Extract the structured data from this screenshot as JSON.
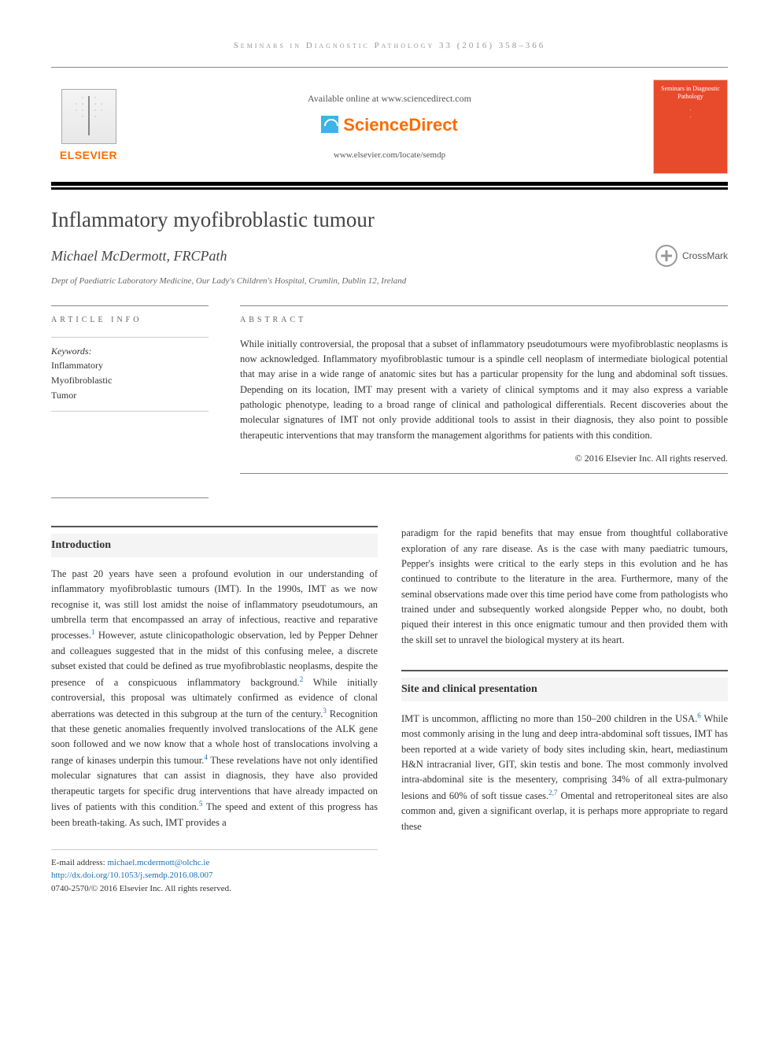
{
  "runningHead": "Seminars in Diagnostic Pathology 33 (2016) 358–366",
  "masthead": {
    "elsevier": "ELSEVIER",
    "availableOnline": "Available online at www.sciencedirect.com",
    "scienceDirect": "ScienceDirect",
    "locate": "www.elsevier.com/locate/semdp",
    "journalCoverTitle": "Seminars in Diagnostic Pathology",
    "journalCoverSub1": "·",
    "journalCoverSub2": "·"
  },
  "article": {
    "title": "Inflammatory myofibroblastic tumour",
    "author": "Michael McDermott, FRCPath",
    "crossmark": "CrossMark",
    "affiliation": "Dept of Paediatric Laboratory Medicine, Our Lady's Children's Hospital, Crumlin, Dublin 12, Ireland"
  },
  "info": {
    "heading": "article info",
    "keywordsLabel": "Keywords:",
    "keywords": [
      "Inflammatory",
      "Myofibroblastic",
      "Tumor"
    ]
  },
  "abstract": {
    "heading": "abstract",
    "text": "While initially controversial, the proposal that a subset of inflammatory pseudotumours were myofibroblastic neoplasms is now acknowledged. Inflammatory myofibroblastic tumour is a spindle cell neoplasm of intermediate biological potential that may arise in a wide range of anatomic sites but has a particular propensity for the lung and abdominal soft tissues. Depending on its location, IMT may present with a variety of clinical symptoms and it may also express a variable pathologic phenotype, leading to a broad range of clinical and pathological differentials. Recent discoveries about the molecular signatures of IMT not only provide additional tools to assist in their diagnosis, they also point to possible therapeutic interventions that may transform the management algorithms for patients with this condition.",
    "copyright": "© 2016 Elsevier Inc. All rights reserved."
  },
  "sections": {
    "intro": {
      "heading": "Introduction",
      "p1a": "The past 20 years have seen a profound evolution in our understanding of inflammatory myofibroblastic tumours (IMT). In the 1990s, IMT as we now recognise it, was still lost amidst the noise of inflammatory pseudotumours, an umbrella term that encompassed an array of infectious, reactive and reparative processes.",
      "r1": "1",
      "p1b": " However, astute clinicopathologic observation, led by Pepper Dehner and colleagues suggested that in the midst of this confusing melee, a discrete subset existed that could be defined as true myofibroblastic neoplasms, despite the presence of a conspicuous inflammatory background.",
      "r2": "2",
      "p1c": " While initially controversial, this proposal was ultimately confirmed as evidence of clonal aberrations was detected in this subgroup at the turn of the century.",
      "r3": "3",
      "p1d": " Recognition that these genetic anomalies frequently involved translocations of the ALK gene soon followed and we now know that a whole host of translocations involving a range of kinases underpin this tumour.",
      "r4": "4",
      "p1e": " These revelations have not only identified molecular signatures that can assist in diagnosis, they have also provided therapeutic targets for specific drug interventions that have already impacted on lives of patients with this condition.",
      "r5": "5",
      "p1f": " The speed and extent of this progress has been breath-taking. As such, IMT provides a",
      "p2": "paradigm for the rapid benefits that may ensue from thoughtful collaborative exploration of any rare disease. As is the case with many paediatric tumours, Pepper's insights were critical to the early steps in this evolution and he has continued to contribute to the literature in the area. Furthermore, many of the seminal observations made over this time period have come from pathologists who trained under and subsequently worked alongside Pepper who, no doubt, both piqued their interest in this once enigmatic tumour and then provided them with the skill set to unravel the biological mystery at its heart."
    },
    "site": {
      "heading": "Site and clinical presentation",
      "p1a": "IMT is uncommon, afflicting no more than 150–200 children in the USA.",
      "r6": "6",
      "p1b": " While most commonly arising in the lung and deep intra-abdominal soft tissues, IMT has been reported at a wide variety of body sites including skin, heart, mediastinum H&N intracranial liver, GIT, skin testis and bone. The most commonly involved intra-abdominal site is the mesentery, comprising 34% of all extra-pulmonary lesions and 60% of soft tissue cases.",
      "r27": "2,7",
      "p1c": " Omental and retroperitoneal sites are also common and, given a significant overlap, it is perhaps more appropriate to regard these"
    }
  },
  "footer": {
    "emailLabel": "E-mail address: ",
    "email": "michael.mcdermott@olchc.ie",
    "doi": "http://dx.doi.org/10.1053/j.semdp.2016.08.007",
    "issn": "0740-2570/© 2016 Elsevier Inc. All rights reserved."
  }
}
